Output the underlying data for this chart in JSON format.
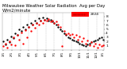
{
  "title": "Milwaukee Weather Solar Radiation  Avg per Day W/m2/minute",
  "title_fontsize": 3.8,
  "bg_color": "#ffffff",
  "dot_color_current": "#ff0000",
  "dot_color_prev": "#000000",
  "legend_box_color": "#ff0000",
  "legend_label": "2024",
  "ylim": [
    0,
    9
  ],
  "yticks": [
    1,
    2,
    3,
    4,
    5,
    6,
    7,
    8
  ],
  "ytick_fontsize": 3.2,
  "xtick_fontsize": 2.8,
  "grid_color": "#bbbbbb",
  "n_points": 52,
  "x_labels": [
    "1/1",
    "2/1",
    "3/1",
    "4/1",
    "5/1",
    "6/1",
    "7/1",
    "8/1",
    "9/1",
    "10/1",
    "11/1",
    "12/1",
    "1/1"
  ],
  "current_values": [
    0.8,
    1.5,
    0.5,
    2.0,
    1.2,
    3.0,
    1.0,
    3.5,
    2.5,
    4.2,
    1.5,
    4.8,
    3.0,
    5.5,
    4.5,
    6.0,
    5.2,
    6.5,
    6.0,
    7.0,
    6.5,
    7.2,
    7.0,
    7.4,
    6.8,
    7.0,
    6.5,
    6.8,
    6.0,
    5.5,
    0.8,
    4.5,
    3.8,
    4.0,
    3.5,
    3.8,
    3.0,
    3.5,
    2.5,
    3.2,
    2.0,
    2.8,
    1.5,
    2.2,
    1.0,
    1.8,
    0.8,
    1.5,
    0.5,
    1.2,
    0.8,
    1.0
  ],
  "prev_values": [
    2.0,
    1.2,
    2.5,
    1.8,
    3.2,
    2.8,
    4.0,
    3.5,
    5.0,
    4.5,
    5.5,
    5.0,
    6.0,
    5.5,
    6.5,
    6.0,
    7.0,
    6.5,
    7.5,
    7.0,
    7.8,
    7.2,
    7.5,
    7.0,
    7.2,
    6.8,
    6.5,
    6.0,
    5.5,
    5.0,
    4.5,
    4.0,
    3.5,
    3.0,
    2.8,
    2.5,
    2.2,
    2.0,
    1.8,
    1.5,
    1.2,
    1.0,
    0.8,
    1.2,
    1.5,
    1.8,
    2.0,
    2.2,
    2.5,
    2.8,
    3.0,
    2.5
  ],
  "month_x_positions": [
    0,
    4.33,
    8.67,
    13,
    17.33,
    21.67,
    26,
    30.33,
    34.67,
    39,
    43.33,
    47.67,
    51
  ],
  "month_labels": [
    "1/1",
    "2/1",
    "3/1",
    "4/1",
    "5/1",
    "6/1",
    "7/1",
    "8/1",
    "9/1",
    "10/1",
    "11/1",
    "12/1",
    "1/1"
  ]
}
